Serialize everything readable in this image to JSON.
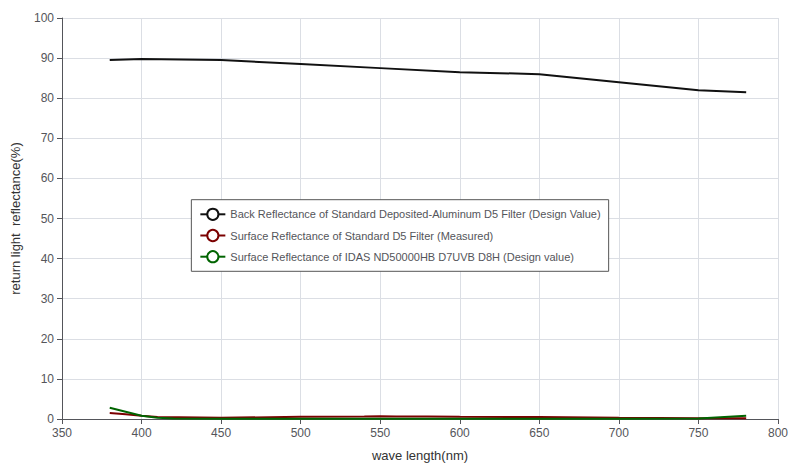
{
  "chart_data": {
    "type": "line",
    "xlabel": "wave length(nm)",
    "ylabel": "return light  reflectance(%)",
    "xlim": [
      350,
      800
    ],
    "ylim": [
      0,
      100
    ],
    "xticks": [
      350,
      400,
      450,
      500,
      550,
      600,
      650,
      700,
      750,
      800
    ],
    "yticks": [
      0,
      10,
      20,
      30,
      40,
      50,
      60,
      70,
      80,
      90,
      100
    ],
    "grid": true,
    "legend": "center",
    "series": [
      {
        "name": "Back Reflectance of Standard Deposited-Aluminum D5 Filter (Design Value)",
        "color": "#111111",
        "x": [
          380,
          400,
          450,
          500,
          550,
          600,
          650,
          700,
          750,
          780
        ],
        "values": [
          89.5,
          89.8,
          89.5,
          88.5,
          87.5,
          86.5,
          86.0,
          84.0,
          82.0,
          81.5
        ]
      },
      {
        "name": "Surface Reflectance of Standard D5 Filter (Measured)",
        "color": "#7B0000",
        "x": [
          380,
          390,
          400,
          410,
          450,
          500,
          540,
          550,
          560,
          580,
          600,
          650,
          700,
          750,
          780
        ],
        "values": [
          1.5,
          1.2,
          0.8,
          0.5,
          0.3,
          0.55,
          0.65,
          0.7,
          0.65,
          0.6,
          0.55,
          0.5,
          0.3,
          0.2,
          0.2
        ]
      },
      {
        "name": "Surface Reflectance of IDAS ND50000HB D7UVB D8H (Design value)",
        "color": "#006400",
        "x": [
          380,
          390,
          400,
          410,
          420,
          450,
          500,
          550,
          600,
          650,
          700,
          750,
          780
        ],
        "values": [
          2.8,
          1.8,
          0.8,
          0.3,
          0.1,
          0.05,
          0.05,
          0.05,
          0.05,
          0.05,
          0.05,
          0.1,
          0.8
        ]
      }
    ]
  }
}
